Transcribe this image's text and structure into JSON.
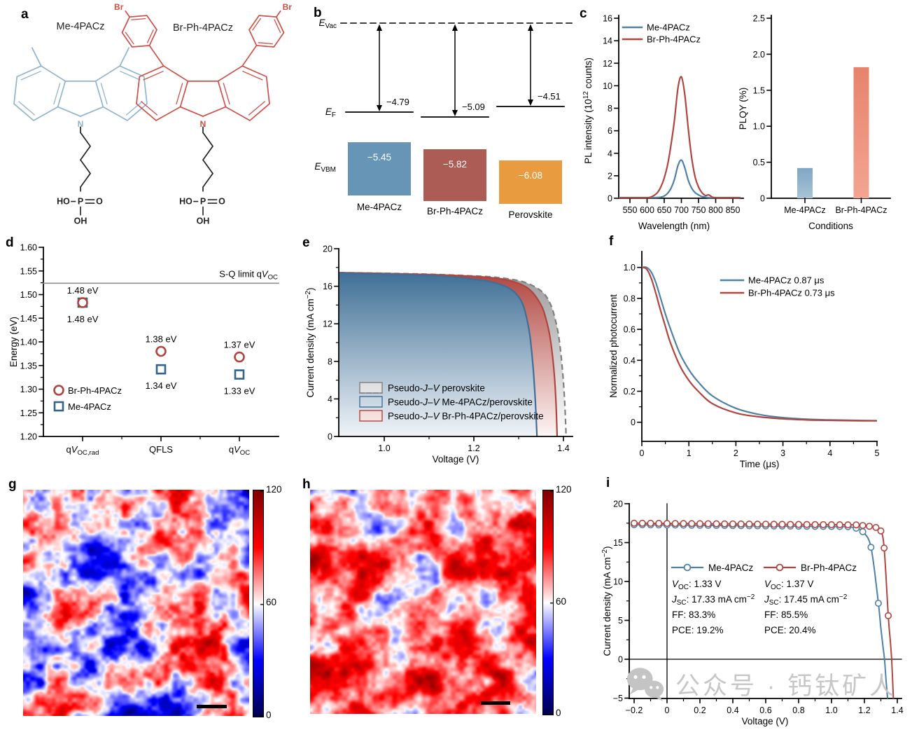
{
  "panels": {
    "a": {
      "label": "a",
      "molecules": [
        {
          "name": "Me-4PACz",
          "color": "#8fb3d1",
          "substituent": "methyl"
        },
        {
          "name": "Br-Ph-4PACz",
          "color": "#cf4f48",
          "substituent": "bromophenyl"
        }
      ],
      "atoms": {
        "n": "N",
        "br": "Br",
        "ho": "HO",
        "p": "P",
        "o": "O",
        "oh": "OH"
      }
    },
    "b": {
      "label": "b",
      "evac_label": "*E*~Vac~",
      "ef_label": "*E*~F~",
      "evbm_label": "*E*~VBM~",
      "levels": [
        {
          "name": "Me-4PACz",
          "work_function": "−4.79",
          "vbm": "−5.45",
          "color": "#6695b5"
        },
        {
          "name": "Br-Ph-4PACz",
          "work_function": "−5.09",
          "vbm": "−5.82",
          "color": "#ad5c55"
        },
        {
          "name": "Perovskite",
          "work_function": "−4.51",
          "vbm": "−6.08",
          "color": "#e99b40"
        }
      ]
    },
    "c": {
      "label": "c"
    },
    "d": {
      "label": "d"
    },
    "e": {
      "label": "e"
    },
    "f": {
      "label": "f"
    },
    "g": {
      "label": "g"
    },
    "h": {
      "label": "h"
    },
    "i": {
      "label": "i"
    }
  },
  "chart_data": [
    {
      "id": "pl-spectrum",
      "panel": "c",
      "type": "line",
      "xlabel": "Wavelength (nm)",
      "ylabel": "PL intensity (10^12^ counts)",
      "xlim": [
        550,
        850
      ],
      "ylim": [
        0,
        16
      ],
      "xticks": [
        [
          550,
          "550"
        ],
        [
          600,
          "600"
        ],
        [
          650,
          "650"
        ],
        [
          700,
          "700"
        ],
        [
          750,
          "750"
        ],
        [
          800,
          "800"
        ],
        [
          850,
          "850"
        ]
      ],
      "yticks": [
        [
          0,
          "0"
        ],
        [
          2,
          "2"
        ],
        [
          4,
          "4"
        ],
        [
          6,
          "6"
        ],
        [
          8,
          "8"
        ],
        [
          10,
          "10"
        ],
        [
          12,
          "12"
        ],
        [
          14,
          "14"
        ],
        [
          16,
          "16"
        ]
      ],
      "legend_position": "top-left",
      "x": [
        550,
        560,
        570,
        580,
        590,
        600,
        610,
        620,
        630,
        640,
        650,
        660,
        670,
        680,
        690,
        700,
        710,
        720,
        730,
        740,
        750,
        760,
        770,
        780,
        790,
        800,
        810,
        820,
        830,
        840,
        850
      ],
      "series": [
        {
          "name": "Me-4PACz",
          "color": "#4f81a6",
          "values": [
            0.05,
            0.05,
            0.05,
            0.05,
            0.05,
            0.05,
            0.05,
            0.06,
            0.07,
            0.1,
            0.2,
            0.45,
            0.9,
            1.7,
            2.9,
            3.4,
            2.7,
            1.6,
            0.9,
            0.5,
            0.3,
            0.15,
            0.1,
            0.05,
            0.05,
            0.05,
            0.05,
            0.05,
            0.05,
            0.05,
            0.05
          ]
        },
        {
          "name": "Br-Ph-4PACz",
          "color": "#b0453f",
          "values": [
            0.05,
            0.05,
            0.05,
            0.05,
            0.05,
            0.05,
            0.1,
            0.25,
            0.5,
            1.0,
            1.8,
            3.0,
            4.8,
            7.0,
            9.8,
            10.8,
            9.2,
            6.2,
            3.6,
            1.9,
            1.0,
            0.5,
            0.25,
            0.3,
            0.1,
            0.05,
            0.05,
            0.05,
            0.05,
            0.05,
            0.05
          ]
        }
      ]
    },
    {
      "id": "plqy",
      "panel": "c",
      "type": "bar",
      "xlabel": "Conditions",
      "ylabel": "PLQY (%)",
      "ylim": [
        0,
        2.5
      ],
      "yticks": [
        [
          0,
          "0"
        ],
        [
          0.5,
          "0.5"
        ],
        [
          1,
          "1.0"
        ],
        [
          1.5,
          "1.5"
        ],
        [
          2,
          "2.0"
        ],
        [
          2.5,
          "2.5"
        ]
      ],
      "categories": [
        "Me-4PACz",
        "Br-Ph-4PACz"
      ],
      "values": [
        0.42,
        1.82
      ],
      "bar_colors_top": [
        "#7ea6c3",
        "#e8836c"
      ],
      "bar_colors_bottom": [
        "#a9c4d6",
        "#f2a592"
      ]
    },
    {
      "id": "energy-losses",
      "panel": "d",
      "type": "scatter",
      "ylabel": "Energy (eV)",
      "ylim": [
        1.2,
        1.6
      ],
      "yticks": [
        [
          1.2,
          "1.20"
        ],
        [
          1.25,
          "1.25"
        ],
        [
          1.3,
          "1.30"
        ],
        [
          1.35,
          "1.35"
        ],
        [
          1.4,
          "1.40"
        ],
        [
          1.45,
          "1.45"
        ],
        [
          1.5,
          "1.50"
        ],
        [
          1.55,
          "1.55"
        ],
        [
          1.6,
          "1.60"
        ]
      ],
      "categories": [
        "q*V*~OC,rad~",
        "QFLS",
        "q*V*~OC~"
      ],
      "sq_limit": {
        "value": 1.524,
        "label": "S-Q limit q*V*~OC~"
      },
      "series": [
        {
          "name": "Br-Ph-4PACz",
          "marker": "circle",
          "color": "#b0453f",
          "values": [
            1.483,
            1.38,
            1.368
          ],
          "labels": [
            "1.48 eV",
            "1.38 eV",
            "1.37 eV"
          ]
        },
        {
          "name": "Me-4PACz",
          "marker": "square",
          "color": "#35638a",
          "values": [
            1.483,
            1.342,
            1.331
          ],
          "labels": [
            "1.48 eV",
            "1.34 eV",
            "1.33 eV"
          ]
        }
      ]
    },
    {
      "id": "pseudo-jv",
      "panel": "e",
      "type": "area",
      "xlabel": "Voltage (V)",
      "ylabel": "Current density (mA cm^−2^)",
      "xlim": [
        0.9,
        1.42
      ],
      "ylim": [
        0,
        20
      ],
      "xticks": [
        [
          1.0,
          "1.0"
        ],
        [
          1.2,
          "1.2"
        ],
        [
          1.4,
          "1.4"
        ]
      ],
      "yticks": [
        [
          0,
          "0"
        ],
        [
          4,
          "4"
        ],
        [
          8,
          "8"
        ],
        [
          12,
          "12"
        ],
        [
          16,
          "16"
        ],
        [
          20,
          "20"
        ]
      ],
      "series": [
        {
          "name": "Pseudo-*J*–*V* perovskite",
          "color": "#8a8a8a",
          "dash": true,
          "points": [
            [
              0.9,
              17.45
            ],
            [
              1.0,
              17.38
            ],
            [
              1.1,
              17.28
            ],
            [
              1.2,
              17.1
            ],
            [
              1.25,
              16.95
            ],
            [
              1.3,
              16.6
            ],
            [
              1.33,
              16.1
            ],
            [
              1.355,
              15.3
            ],
            [
              1.37,
              14.2
            ],
            [
              1.38,
              12.8
            ],
            [
              1.39,
              10.5
            ],
            [
              1.398,
              7.0
            ],
            [
              1.403,
              3.5
            ],
            [
              1.406,
              0
            ]
          ]
        },
        {
          "name": "Pseudo-*J*–*V* Me-4PACz/perovskite",
          "color": "#3f6f96",
          "dash": false,
          "points": [
            [
              0.9,
              17.4
            ],
            [
              1.0,
              17.3
            ],
            [
              1.1,
              17.15
            ],
            [
              1.15,
              17.0
            ],
            [
              1.2,
              16.75
            ],
            [
              1.24,
              16.45
            ],
            [
              1.27,
              16.0
            ],
            [
              1.29,
              15.4
            ],
            [
              1.305,
              14.5
            ],
            [
              1.315,
              13.2
            ],
            [
              1.325,
              10.8
            ],
            [
              1.332,
              7.5
            ],
            [
              1.337,
              4.0
            ],
            [
              1.341,
              0
            ]
          ]
        },
        {
          "name": "Pseudo-*J*–*V* Br-Ph-4PACz/perovskite",
          "color": "#b0453f",
          "dash": false,
          "points": [
            [
              0.9,
              17.45
            ],
            [
              1.0,
              17.36
            ],
            [
              1.1,
              17.25
            ],
            [
              1.2,
              17.05
            ],
            [
              1.25,
              16.85
            ],
            [
              1.28,
              16.6
            ],
            [
              1.31,
              16.1
            ],
            [
              1.33,
              15.4
            ],
            [
              1.35,
              14.0
            ],
            [
              1.36,
              12.7
            ],
            [
              1.37,
              10.6
            ],
            [
              1.378,
              7.5
            ],
            [
              1.383,
              4.0
            ],
            [
              1.386,
              0
            ]
          ]
        }
      ]
    },
    {
      "id": "photocurrent-decay",
      "panel": "f",
      "type": "line",
      "xlabel": "Time (μs)",
      "ylabel": "Normalized photocurrent",
      "xlim": [
        0,
        5
      ],
      "ylim": [
        0,
        1.0
      ],
      "xticks": [
        [
          0,
          "0"
        ],
        [
          1,
          "1"
        ],
        [
          2,
          "2"
        ],
        [
          3,
          "3"
        ],
        [
          4,
          "4"
        ],
        [
          5,
          "5"
        ]
      ],
      "yticks": [
        [
          0,
          "0"
        ],
        [
          0.2,
          "0.2"
        ],
        [
          0.4,
          "0.4"
        ],
        [
          0.6,
          "0.6"
        ],
        [
          0.8,
          "0.8"
        ],
        [
          1,
          "1.0"
        ]
      ],
      "x": [
        0,
        0.1,
        0.2,
        0.3,
        0.4,
        0.5,
        0.6,
        0.8,
        1.0,
        1.2,
        1.5,
        2.0,
        2.5,
        3.0,
        3.5,
        4.0,
        4.5,
        5.0
      ],
      "series": [
        {
          "name": "Me-4PACz 0.87 μs",
          "color": "#4f81a6",
          "values": [
            1.0,
            1.0,
            0.97,
            0.9,
            0.8,
            0.7,
            0.61,
            0.45,
            0.34,
            0.26,
            0.17,
            0.09,
            0.05,
            0.03,
            0.02,
            0.015,
            0.012,
            0.01
          ]
        },
        {
          "name": "Br-Ph-4PACz 0.73 μs",
          "color": "#b0453f",
          "values": [
            1.0,
            0.99,
            0.93,
            0.83,
            0.72,
            0.62,
            0.52,
            0.37,
            0.27,
            0.2,
            0.12,
            0.06,
            0.035,
            0.022,
            0.015,
            0.012,
            0.01,
            0.009
          ]
        }
      ]
    },
    {
      "id": "jv-curves",
      "panel": "i",
      "type": "line-markers",
      "xlabel": "Voltage (V)",
      "ylabel": "Current density (mA cm^−2^)",
      "xlim": [
        -0.23,
        1.425
      ],
      "ylim": [
        -5.6,
        20
      ],
      "xticks": [
        [
          -0.2,
          "−0.2"
        ],
        [
          0,
          "0"
        ],
        [
          0.2,
          "0.2"
        ],
        [
          0.4,
          "0.4"
        ],
        [
          0.6,
          "0.6"
        ],
        [
          0.8,
          "0.8"
        ],
        [
          1.0,
          "1.0"
        ],
        [
          1.2,
          "1.2"
        ],
        [
          1.4,
          "1.4"
        ]
      ],
      "yticks": [
        [
          -5,
          "−5"
        ],
        [
          0,
          "0"
        ],
        [
          5,
          "5"
        ],
        [
          10,
          "10"
        ],
        [
          15,
          "15"
        ],
        [
          20,
          "20"
        ]
      ],
      "series": [
        {
          "name": "Me-4PACz",
          "color": "#4f81a6",
          "flat": {
            "v_start": -0.2,
            "v_end": 1.1,
            "step": 0.05,
            "j_start": 17.3,
            "j_end": 17.05
          },
          "knee": [
            [
              1.15,
              16.85
            ],
            [
              1.19,
              16.4
            ],
            [
              1.24,
              14.4
            ],
            [
              1.285,
              7.2
            ]
          ],
          "tail": [
            [
              1.3,
              4.0
            ],
            [
              1.312,
              1.8
            ],
            [
              1.322,
              0
            ],
            [
              1.332,
              -2.8
            ],
            [
              1.341,
              -5.05
            ]
          ],
          "params": [
            "*V*~OC~: 1.33 V",
            "*J*~SC~: 17.33 mA cm^−2^",
            "FF: 83.3%",
            "PCE: 19.2%"
          ]
        },
        {
          "name": "Br-Ph-4PACz",
          "color": "#b0453f",
          "flat": {
            "v_start": -0.2,
            "v_end": 1.15,
            "step": 0.05,
            "j_start": 17.5,
            "j_end": 17.28
          },
          "knee": [
            [
              1.19,
              17.2
            ],
            [
              1.23,
              17.1
            ],
            [
              1.27,
              16.95
            ],
            [
              1.3,
              16.5
            ],
            [
              1.32,
              14.3
            ],
            [
              1.345,
              5.6
            ]
          ],
          "tail": [
            [
              1.357,
              2.5
            ],
            [
              1.365,
              0.2
            ],
            [
              1.371,
              -2.5
            ],
            [
              1.376,
              -5.05
            ]
          ],
          "params": [
            "*V*~OC~: 1.37 V",
            "*J*~SC~: 17.45 mA cm^−2^",
            "FF: 85.5%",
            "PCE: 20.4%"
          ]
        }
      ]
    }
  ],
  "heatmaps": [
    {
      "id": "g",
      "colorbar": {
        "max": "120",
        "mid": "60",
        "min": "0"
      },
      "render": {
        "seed": 11,
        "bias": 60,
        "amp": 150
      }
    },
    {
      "id": "h",
      "colorbar": {
        "max": "120",
        "mid": "60",
        "min": "0"
      },
      "render": {
        "seed": 29,
        "bias": 79,
        "amp": 125
      }
    }
  ],
  "watermark": {
    "text": "公众号 · 钙钛矿人",
    "color": "#c7c7c7"
  }
}
